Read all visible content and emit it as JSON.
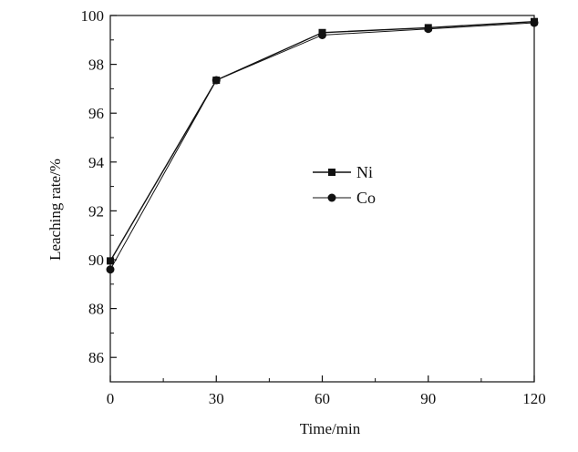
{
  "chart_data": {
    "type": "line",
    "xlabel": "Time/min",
    "ylabel": "Leaching rate/%",
    "xlim": [
      0,
      120
    ],
    "ylim": [
      85,
      100
    ],
    "x_ticks": [
      "0",
      "30",
      "60",
      "90",
      "120"
    ],
    "y_ticks": [
      "86",
      "88",
      "90",
      "92",
      "94",
      "96",
      "98",
      "100"
    ],
    "legend_position": "center",
    "grid": false,
    "series": [
      {
        "name": "Ni",
        "marker": "square",
        "x": [
          0,
          30,
          60,
          90,
          120
        ],
        "y": [
          89.95,
          97.35,
          99.3,
          99.5,
          99.75
        ]
      },
      {
        "name": "Co",
        "marker": "circle",
        "x": [
          0,
          30,
          60,
          90,
          120
        ],
        "y": [
          89.6,
          97.35,
          99.2,
          99.45,
          99.7
        ]
      }
    ]
  }
}
